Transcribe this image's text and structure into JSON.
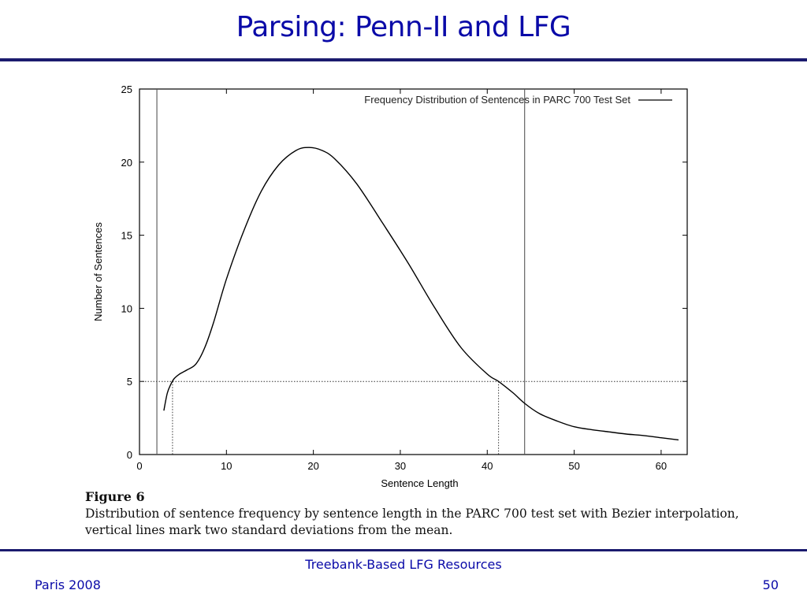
{
  "slide": {
    "title": "Parsing: Penn-II and LFG",
    "footer_center": "Treebank-Based LFG Resources",
    "footer_left": "Paris  2008",
    "page_number": "50",
    "accent_color": "#0a0aa8",
    "rule_color": "#1b1b6e"
  },
  "caption": {
    "title": "Figure 6",
    "text": " Distribution of sentence frequency by sentence length in the PARC 700 test set with Bezier interpolation, vertical lines mark two standard deviations from the mean."
  },
  "chart_data": {
    "type": "line",
    "xlabel": "Sentence Length",
    "ylabel": "Number of Sentences",
    "xlim": [
      0,
      63
    ],
    "ylim": [
      0,
      25
    ],
    "xticks": [
      0,
      10,
      20,
      30,
      40,
      50,
      60
    ],
    "yticks": [
      0,
      5,
      10,
      15,
      20,
      25
    ],
    "legend": {
      "position": "top-right",
      "entries": [
        "Frequency Distribution of Sentences in PARC 700 Test Set"
      ]
    },
    "series": [
      {
        "name": "Frequency Distribution of Sentences in PARC 700 Test Set",
        "x": [
          2.8,
          3.2,
          3.6,
          4.0,
          4.6,
          5.5,
          6.5,
          7.5,
          8.5,
          10,
          12,
          14,
          16,
          18,
          19.5,
          21,
          22.5,
          25,
          28,
          31,
          34,
          37,
          40,
          41.3,
          43,
          44.3,
          46,
          48,
          50,
          52,
          54,
          56,
          58,
          60,
          62
        ],
        "values": [
          3.0,
          4.2,
          4.8,
          5.2,
          5.5,
          5.8,
          6.2,
          7.3,
          9.0,
          12.0,
          15.3,
          18.0,
          19.8,
          20.8,
          21.0,
          20.8,
          20.2,
          18.5,
          15.8,
          13.0,
          10.0,
          7.3,
          5.5,
          5.0,
          4.2,
          3.5,
          2.8,
          2.3,
          1.9,
          1.7,
          1.55,
          1.4,
          1.3,
          1.15,
          1.0
        ]
      }
    ],
    "vertical_lines": [
      2.0,
      44.3
    ],
    "reference_line_y": 5,
    "reference_drop_x": [
      3.8,
      41.3
    ]
  }
}
